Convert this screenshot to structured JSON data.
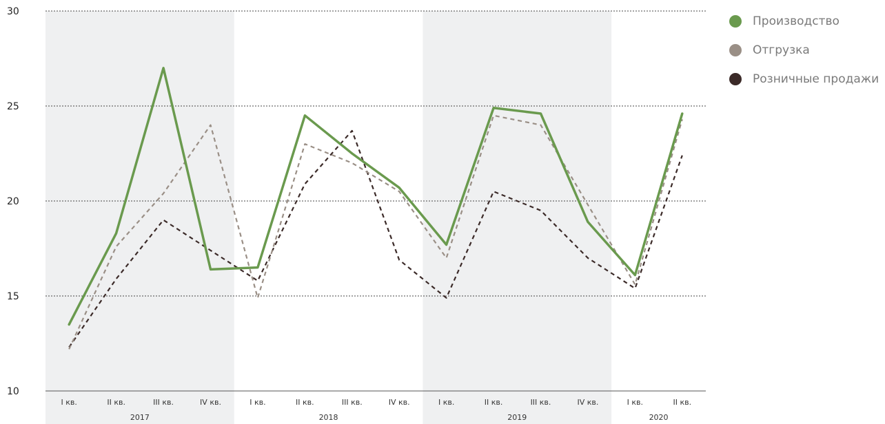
{
  "chart_data": {
    "type": "line",
    "title": "",
    "xlabel": "",
    "ylabel": "",
    "ylim": [
      10,
      30
    ],
    "yticks": [
      10,
      15,
      20,
      25,
      30
    ],
    "grid": true,
    "legend_position": "top-right",
    "categories": [
      "I кв.",
      "II кв.",
      "III кв.",
      "IV кв.",
      "I кв.",
      "II кв.",
      "III кв.",
      "IV кв.",
      "I кв.",
      "II кв.",
      "III кв.",
      "IV кв.",
      "I кв.",
      "II кв."
    ],
    "year_groups": [
      {
        "label": "2017",
        "start": 0,
        "end": 3,
        "shaded": true
      },
      {
        "label": "2018",
        "start": 4,
        "end": 7,
        "shaded": false
      },
      {
        "label": "2019",
        "start": 8,
        "end": 11,
        "shaded": true
      },
      {
        "label": "2020",
        "start": 12,
        "end": 13,
        "shaded": false
      }
    ],
    "series": [
      {
        "name": "Производство",
        "color": "#6a9a4e",
        "style": "solid",
        "values": [
          13.5,
          18.3,
          27.0,
          16.4,
          16.5,
          24.5,
          22.5,
          20.7,
          17.7,
          24.9,
          24.6,
          18.9,
          16.1,
          24.6
        ]
      },
      {
        "name": "Отгрузка",
        "color": "#9a8f86",
        "style": "dashed",
        "values": [
          12.2,
          17.6,
          20.4,
          24.0,
          14.9,
          23.0,
          22.0,
          20.5,
          17.0,
          24.5,
          24.0,
          19.8,
          15.6,
          24.3
        ]
      },
      {
        "name": "Розничные продажи",
        "color": "#3b2a28",
        "style": "dashed",
        "values": [
          12.3,
          15.9,
          19.0,
          17.4,
          15.8,
          20.9,
          23.7,
          16.9,
          14.9,
          20.5,
          19.5,
          17.0,
          15.4,
          22.4
        ]
      }
    ]
  }
}
